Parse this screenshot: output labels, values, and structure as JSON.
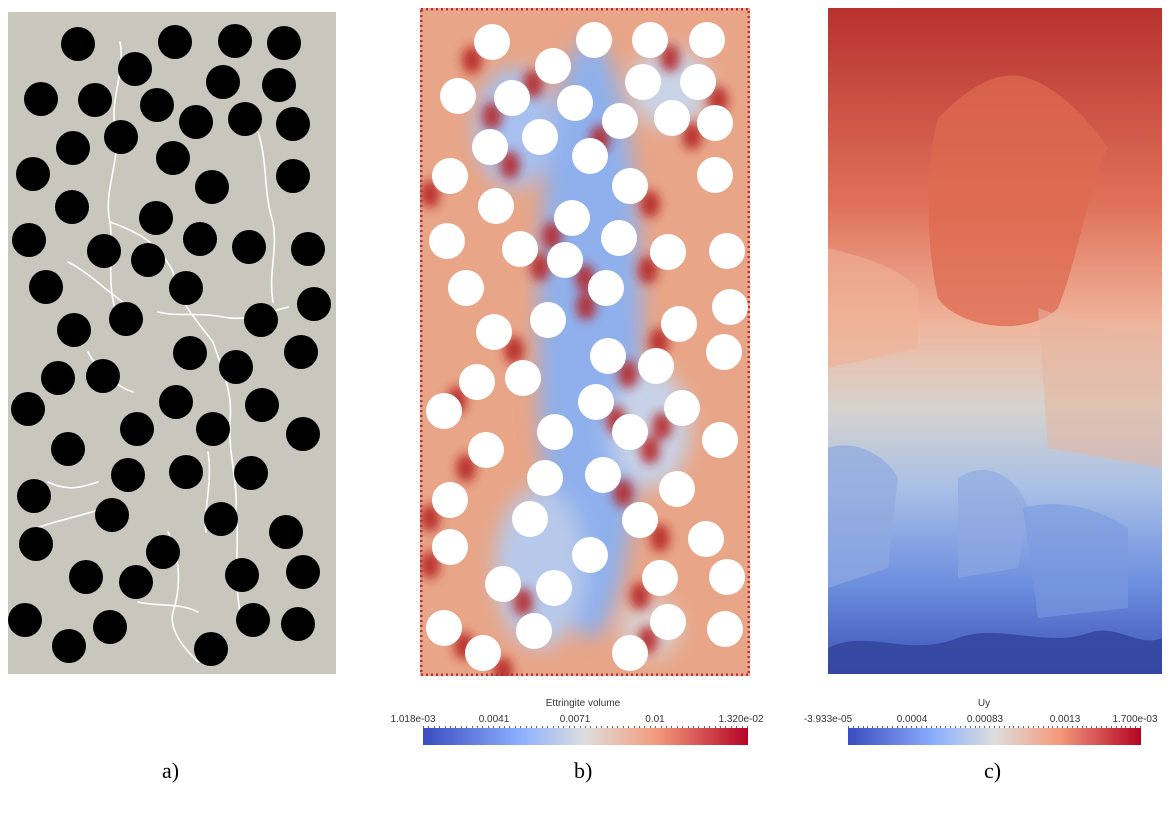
{
  "panels": {
    "a": {
      "caption": "a)",
      "matrix_color": "#c9c6be",
      "inclusion_color": "#000000",
      "crack_color": "#ffffff"
    },
    "b": {
      "caption": "b)",
      "colorbar": {
        "title": "Ettringite volume",
        "ticks": [
          "1.018e-03",
          "0.0041",
          "0.0071",
          "0.01",
          "1.320e-02"
        ],
        "colors": [
          "#3b4cc0",
          "#dddddd",
          "#b40426"
        ]
      }
    },
    "c": {
      "caption": "c)",
      "colorbar": {
        "title": "Uy",
        "ticks": [
          "-3.933e-05",
          "0.0004",
          "0.00083",
          "0.0013",
          "1.700e-03"
        ],
        "colors": [
          "#3b4cc0",
          "#dddddd",
          "#b40426"
        ]
      }
    }
  }
}
